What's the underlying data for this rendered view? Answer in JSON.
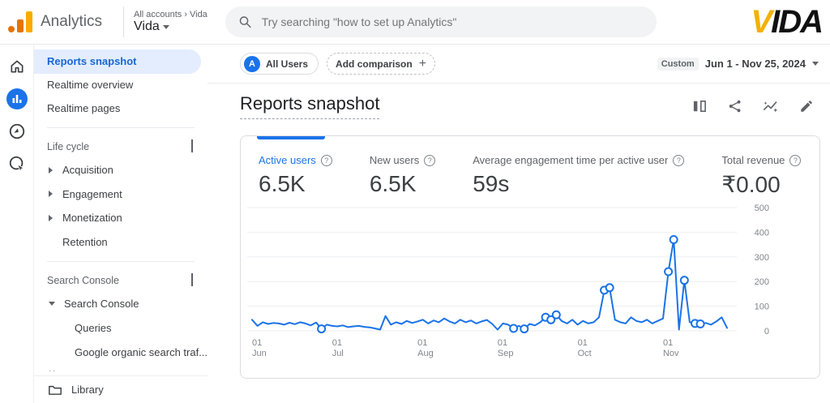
{
  "header": {
    "product_name": "Analytics",
    "breadcrumb": {
      "root": "All accounts",
      "separator": "›",
      "leaf": "Vida"
    },
    "property_name": "Vida",
    "search_placeholder": "Try searching \"how to set up Analytics\"",
    "brand": {
      "first_letter": "V",
      "rest": "IDA",
      "accent_color": "#f2b200"
    }
  },
  "nav_rail": {
    "items": [
      {
        "icon": "home-icon",
        "active": false
      },
      {
        "icon": "reports-icon",
        "active": true
      },
      {
        "icon": "explore-icon",
        "active": false
      },
      {
        "icon": "advertising-icon",
        "active": false
      }
    ]
  },
  "sidebar": {
    "items_top": [
      {
        "label": "Reports snapshot",
        "selected": true
      },
      {
        "label": "Realtime overview",
        "selected": false
      },
      {
        "label": "Realtime pages",
        "selected": false
      }
    ],
    "sections": [
      {
        "title": "Life cycle",
        "items": [
          {
            "label": "Acquisition",
            "expandable": true
          },
          {
            "label": "Engagement",
            "expandable": true
          },
          {
            "label": "Monetization",
            "expandable": true
          },
          {
            "label": "Retention",
            "expandable": false
          }
        ]
      },
      {
        "title": "Search Console",
        "items": [
          {
            "label": "Search Console",
            "expanded": true,
            "children": [
              {
                "label": "Queries"
              },
              {
                "label": "Google organic search traf..."
              }
            ]
          }
        ]
      }
    ],
    "overflow_hint": "..",
    "footer": {
      "label": "Library",
      "icon": "folder-icon"
    }
  },
  "toolbar": {
    "segment_chip": {
      "badge_letter": "A",
      "label": "All Users"
    },
    "add_comparison_label": "Add comparison",
    "date_range": {
      "type_label": "Custom",
      "value": "Jun 1 - Nov 25, 2024"
    }
  },
  "page": {
    "title": "Reports snapshot"
  },
  "report_actions": {
    "icons": [
      "compare-icon",
      "share-icon",
      "insights-icon",
      "edit-icon"
    ]
  },
  "metrics_card": {
    "metrics": [
      {
        "label": "Active users",
        "value": "6.5K",
        "selected": true
      },
      {
        "label": "New users",
        "value": "6.5K",
        "selected": false
      },
      {
        "label": "Average engagement time per active user",
        "value": "59s",
        "selected": false
      },
      {
        "label": "Total revenue",
        "value": "₹0.00",
        "selected": false
      }
    ],
    "status_icon": "status-check-icon",
    "accent_color": "#1a73e8",
    "status_color": "#1e8e3e"
  },
  "chart_data": {
    "type": "line",
    "title": "Active users over time (Jun 1 - Nov 25, 2024)",
    "xlabel": "",
    "ylabel": "",
    "ylim": [
      0,
      500
    ],
    "y_ticks": [
      0,
      100,
      200,
      300,
      400,
      500
    ],
    "grid": true,
    "legend": "none",
    "line_color": "#1a73e8",
    "x_tick_labels": [
      [
        "01",
        "Jun"
      ],
      [
        "01",
        "Jul"
      ],
      [
        "01",
        "Aug"
      ],
      [
        "01",
        "Sep"
      ],
      [
        "01",
        "Oct"
      ],
      [
        "01",
        "Nov"
      ]
    ],
    "x_tick_indices": [
      0,
      15,
      31,
      46,
      61,
      77
    ],
    "sampling_note": "daily series sampled ~every 2 days, values estimated from axis",
    "values": [
      45,
      20,
      35,
      28,
      32,
      30,
      25,
      33,
      27,
      35,
      30,
      22,
      34,
      8,
      25,
      20,
      18,
      22,
      15,
      18,
      20,
      16,
      14,
      10,
      5,
      60,
      25,
      35,
      28,
      40,
      32,
      38,
      45,
      30,
      42,
      35,
      50,
      38,
      30,
      45,
      35,
      42,
      30,
      38,
      44,
      28,
      5,
      30,
      25,
      10,
      20,
      8,
      28,
      22,
      35,
      55,
      45,
      65,
      40,
      30,
      45,
      25,
      40,
      30,
      35,
      55,
      165,
      175,
      45,
      35,
      30,
      55,
      40,
      35,
      45,
      30,
      40,
      50,
      240,
      370,
      5,
      205,
      35,
      30,
      28,
      32,
      25,
      38,
      55,
      12
    ],
    "anomaly_marker_indices": [
      13,
      49,
      51,
      55,
      56,
      57,
      66,
      67,
      78,
      79,
      81,
      83,
      84
    ]
  }
}
